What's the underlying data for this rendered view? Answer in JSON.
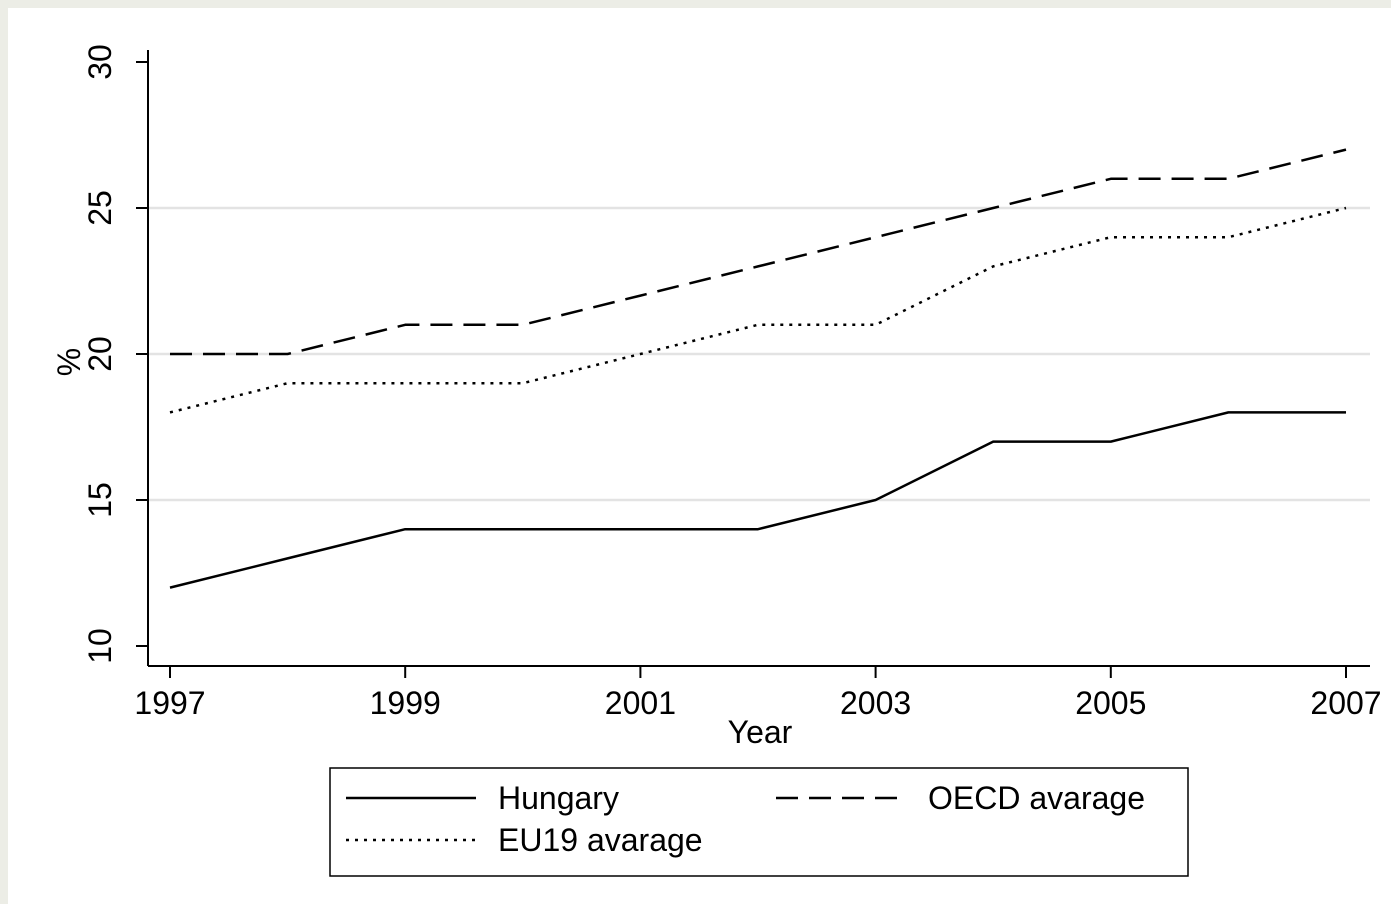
{
  "chart_data": {
    "type": "line",
    "x": [
      1997,
      1998,
      1999,
      2000,
      2001,
      2002,
      2003,
      2004,
      2005,
      2006,
      2007
    ],
    "series": [
      {
        "name": "Hungary",
        "style": "solid",
        "values": [
          12,
          13,
          14,
          14,
          14,
          14,
          15,
          17,
          17,
          18,
          18
        ]
      },
      {
        "name": "OECD avarage",
        "style": "dashed",
        "values": [
          20,
          20,
          21,
          21,
          22,
          23,
          24,
          25,
          26,
          26,
          27
        ]
      },
      {
        "name": "EU19 avarage",
        "style": "dotted",
        "values": [
          18,
          19,
          19,
          19,
          20,
          21,
          21,
          23,
          24,
          24,
          25
        ]
      }
    ],
    "xlabel": "Year",
    "ylabel": "%",
    "xlim": [
      1997,
      2007
    ],
    "ylim": [
      10,
      30
    ],
    "xticks": [
      "1997",
      "1999",
      "2001",
      "2003",
      "2005",
      "2007"
    ],
    "yticks": [
      "10",
      "15",
      "20",
      "25",
      "30"
    ],
    "grid": "horizontal",
    "legend_position": "bottom",
    "colors": {
      "background": "#ecede6",
      "plot": "#ffffff",
      "grid": "#e3e3e3",
      "line": "#000000"
    }
  }
}
